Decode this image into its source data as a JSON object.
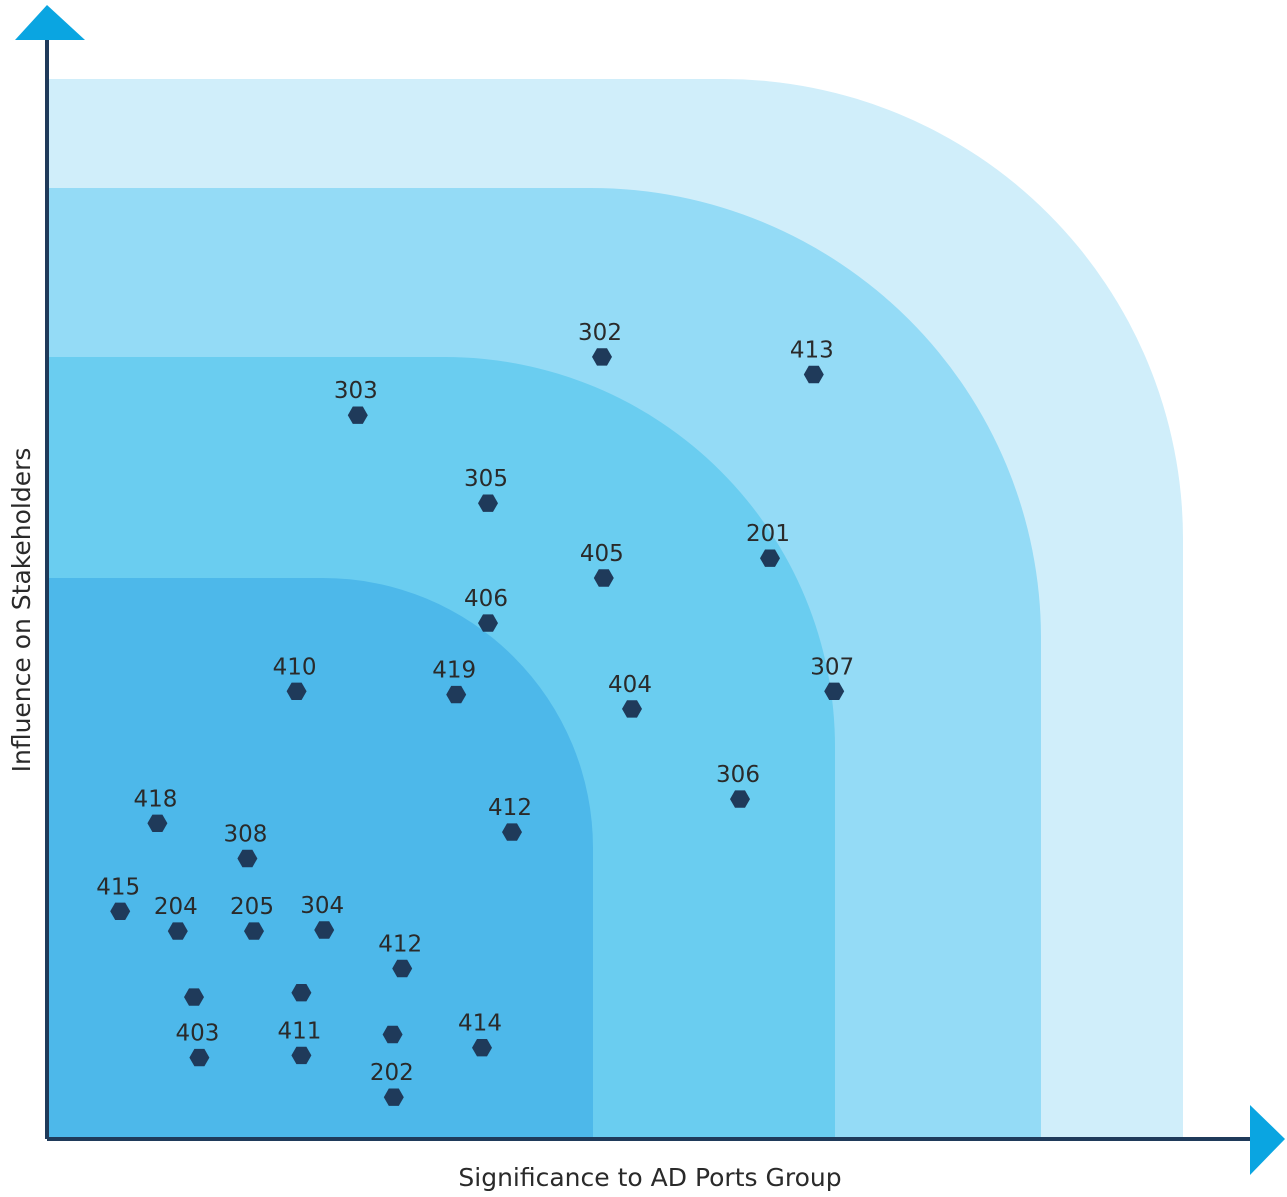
{
  "chart_data": {
    "type": "scatter",
    "x_label": "Significance to AD Ports Group",
    "y_label": "Influence on  Stakeholders",
    "xlim": [
      0,
      100
    ],
    "ylim": [
      0,
      100
    ],
    "color": "#1f3a5a",
    "labels": [
      "302",
      "413",
      "303",
      "305",
      "405",
      "201",
      "406",
      "410",
      "419",
      "404",
      "307",
      "306",
      "418",
      "412",
      "308",
      "415",
      "204",
      "205",
      "304",
      "412",
      null,
      null,
      null,
      "403",
      "411",
      "414",
      "202"
    ],
    "x": [
      46.25,
      63.9,
      25.9,
      36.75,
      46.4,
      60.25,
      36.75,
      20.8,
      34.1,
      48.75,
      65.6,
      57.75,
      9.2,
      38.75,
      16.7,
      6.1,
      10.9,
      17.25,
      23.1,
      29.6,
      12.25,
      21.2,
      28.8,
      12.7,
      21.2,
      36.25,
      28.9
    ],
    "y": [
      71.1,
      69.5,
      65.8,
      57.8,
      51.0,
      52.8,
      46.9,
      40.7,
      40.4,
      39.1,
      40.7,
      30.9,
      28.7,
      27.9,
      25.5,
      20.7,
      18.9,
      18.9,
      19.0,
      15.5,
      12.9,
      13.3,
      9.5,
      7.4,
      7.6,
      8.3,
      3.8
    ]
  }
}
